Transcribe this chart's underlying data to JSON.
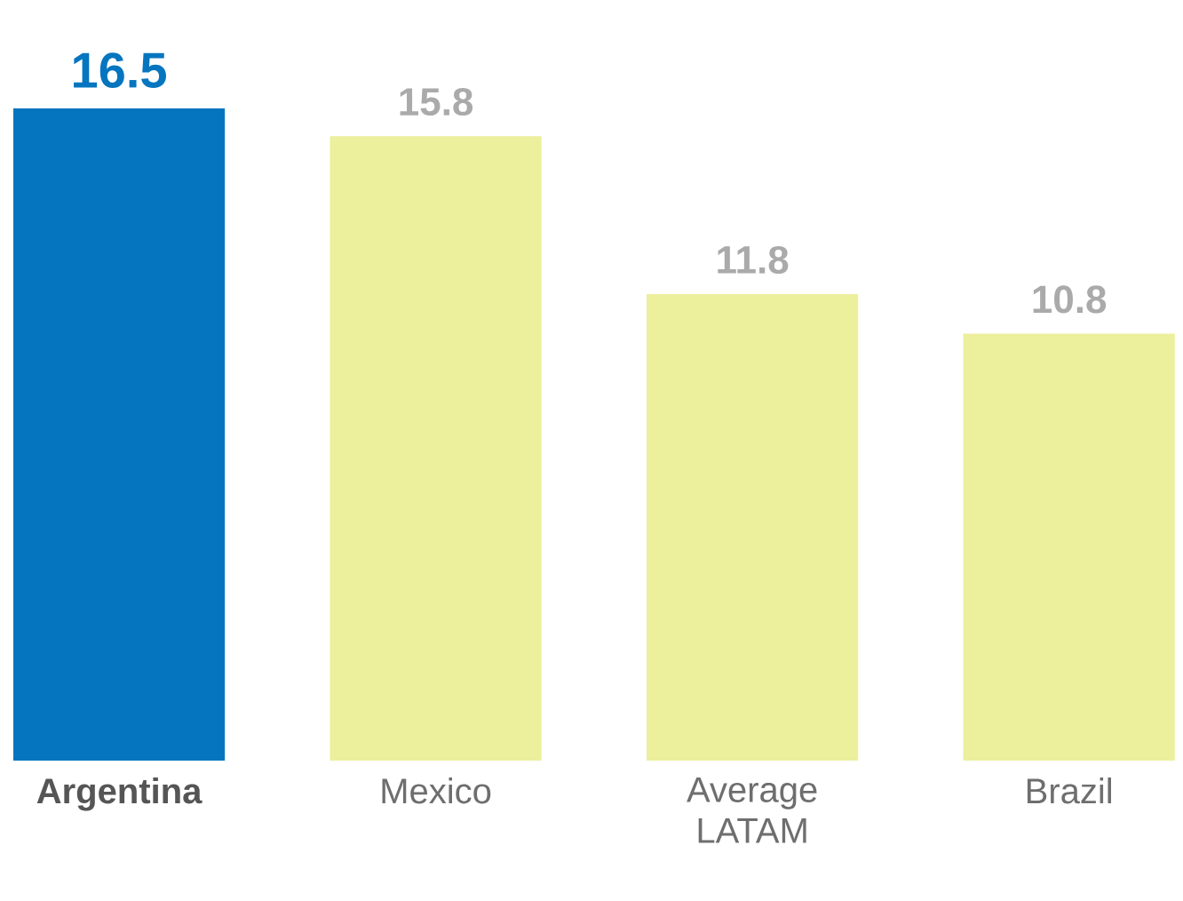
{
  "chart_data": {
    "type": "bar",
    "categories": [
      "Argentina",
      "Mexico",
      "Average LATAM",
      "Brazil"
    ],
    "values": [
      16.5,
      15.8,
      11.8,
      10.8
    ],
    "colors": [
      "#0575bf",
      "#ecef9c",
      "#ecef9c",
      "#ecef9c"
    ],
    "data_labels": true
  }
}
